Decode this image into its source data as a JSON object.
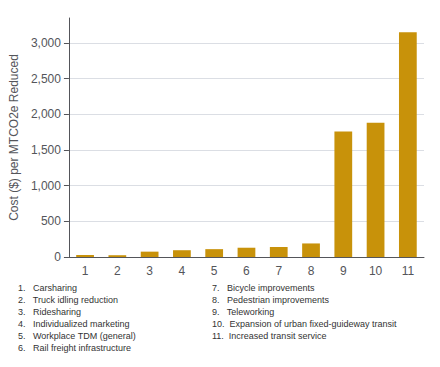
{
  "chart_data": {
    "type": "bar",
    "ylabel": "Cost ($) per MTCO2e Reduced",
    "categories": [
      "1",
      "2",
      "3",
      "4",
      "5",
      "6",
      "7",
      "8",
      "9",
      "10",
      "11"
    ],
    "values": [
      28,
      25,
      75,
      95,
      110,
      130,
      140,
      190,
      1760,
      1880,
      3150
    ],
    "color": "#C8920A",
    "ylim": [
      0,
      3350
    ],
    "yticks": [
      0,
      500,
      {
        "value": 1000,
        "label": "1,000"
      },
      {
        "value": 1500,
        "label": "1,500"
      },
      {
        "value": 2000,
        "label": "2,000"
      },
      {
        "value": 2500,
        "label": "2,500"
      },
      {
        "value": 3000,
        "label": "3,000"
      }
    ],
    "grid": true,
    "annotations": [
      "1.   Carsharing",
      "2.   Truck idling reduction",
      "3.   Ridesharing",
      "4.   Individualized marketing",
      "5.   Workplace TDM (general)",
      "6.   Rail freight infrastructure",
      "7.   Bicycle improvements",
      "8.   Pedestrian improvements",
      "9.   Teleworking",
      "10.  Expansion of urban fixed-guideway transit",
      "11.  Increased transit service"
    ]
  }
}
